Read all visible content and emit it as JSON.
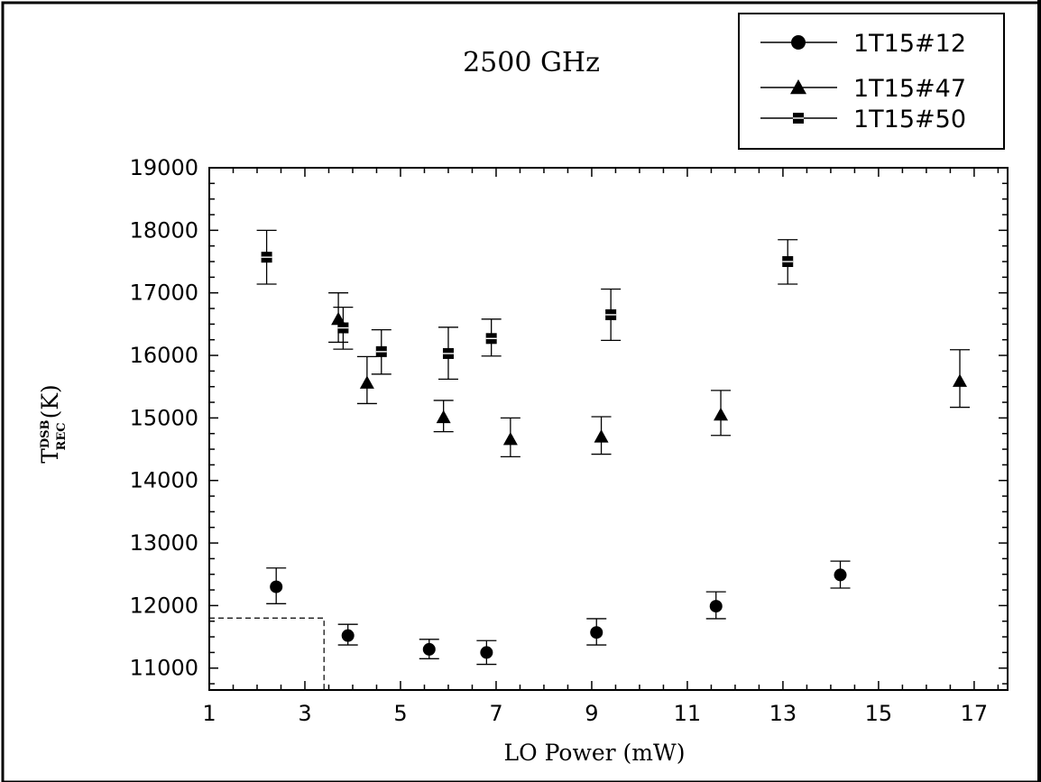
{
  "chart_data": {
    "type": "scatter",
    "title": "2500 GHz",
    "xlabel": "LO Power (mW)",
    "ylabel": {
      "main": "T",
      "sup": "DSB",
      "sub": "REC",
      "unit": "(K)"
    },
    "xlim": [
      1,
      17.7
    ],
    "ylim": [
      10650,
      19000
    ],
    "x_ticks": [
      1,
      3,
      5,
      7,
      9,
      11,
      13,
      15,
      17
    ],
    "y_ticks": [
      11000,
      12000,
      13000,
      14000,
      15000,
      16000,
      17000,
      18000,
      19000
    ],
    "legend_position": "top-right",
    "grid": false,
    "reference_box": {
      "x_max": 3.4,
      "y_max": 11800
    },
    "series": [
      {
        "name": "1T15#12",
        "marker": "circle",
        "points": [
          {
            "x": 2.4,
            "y": 12300,
            "err_low": 12030,
            "err_high": 12600
          },
          {
            "x": 3.9,
            "y": 11520,
            "err_low": 11370,
            "err_high": 11700
          },
          {
            "x": 5.6,
            "y": 11300,
            "err_low": 11150,
            "err_high": 11460
          },
          {
            "x": 6.8,
            "y": 11250,
            "err_low": 11060,
            "err_high": 11440
          },
          {
            "x": 9.1,
            "y": 11570,
            "err_low": 11370,
            "err_high": 11790
          },
          {
            "x": 11.6,
            "y": 11990,
            "err_low": 11790,
            "err_high": 12220
          },
          {
            "x": 14.2,
            "y": 12490,
            "err_low": 12280,
            "err_high": 12710
          }
        ]
      },
      {
        "name": "1T15#47",
        "marker": "triangle",
        "points": [
          {
            "x": 3.7,
            "y": 16580,
            "err_low": 16210,
            "err_high": 17000
          },
          {
            "x": 4.3,
            "y": 15560,
            "err_low": 15230,
            "err_high": 15980
          },
          {
            "x": 5.9,
            "y": 15010,
            "err_low": 14780,
            "err_high": 15280
          },
          {
            "x": 7.3,
            "y": 14660,
            "err_low": 14380,
            "err_high": 15000
          },
          {
            "x": 9.2,
            "y": 14700,
            "err_low": 14420,
            "err_high": 15020
          },
          {
            "x": 11.7,
            "y": 15050,
            "err_low": 14720,
            "err_high": 15440
          },
          {
            "x": 16.7,
            "y": 15590,
            "err_low": 15170,
            "err_high": 16090
          }
        ]
      },
      {
        "name": "1T15#50",
        "marker": "square",
        "points": [
          {
            "x": 2.2,
            "y": 17570,
            "err_low": 17140,
            "err_high": 18000
          },
          {
            "x": 3.8,
            "y": 16440,
            "err_low": 16100,
            "err_high": 16770
          },
          {
            "x": 4.6,
            "y": 16060,
            "err_low": 15700,
            "err_high": 16410
          },
          {
            "x": 6.0,
            "y": 16030,
            "err_low": 15620,
            "err_high": 16450
          },
          {
            "x": 6.9,
            "y": 16270,
            "err_low": 15990,
            "err_high": 16580
          },
          {
            "x": 9.4,
            "y": 16650,
            "err_low": 16240,
            "err_high": 17060
          },
          {
            "x": 13.1,
            "y": 17500,
            "err_low": 17140,
            "err_high": 17850
          }
        ]
      }
    ]
  }
}
